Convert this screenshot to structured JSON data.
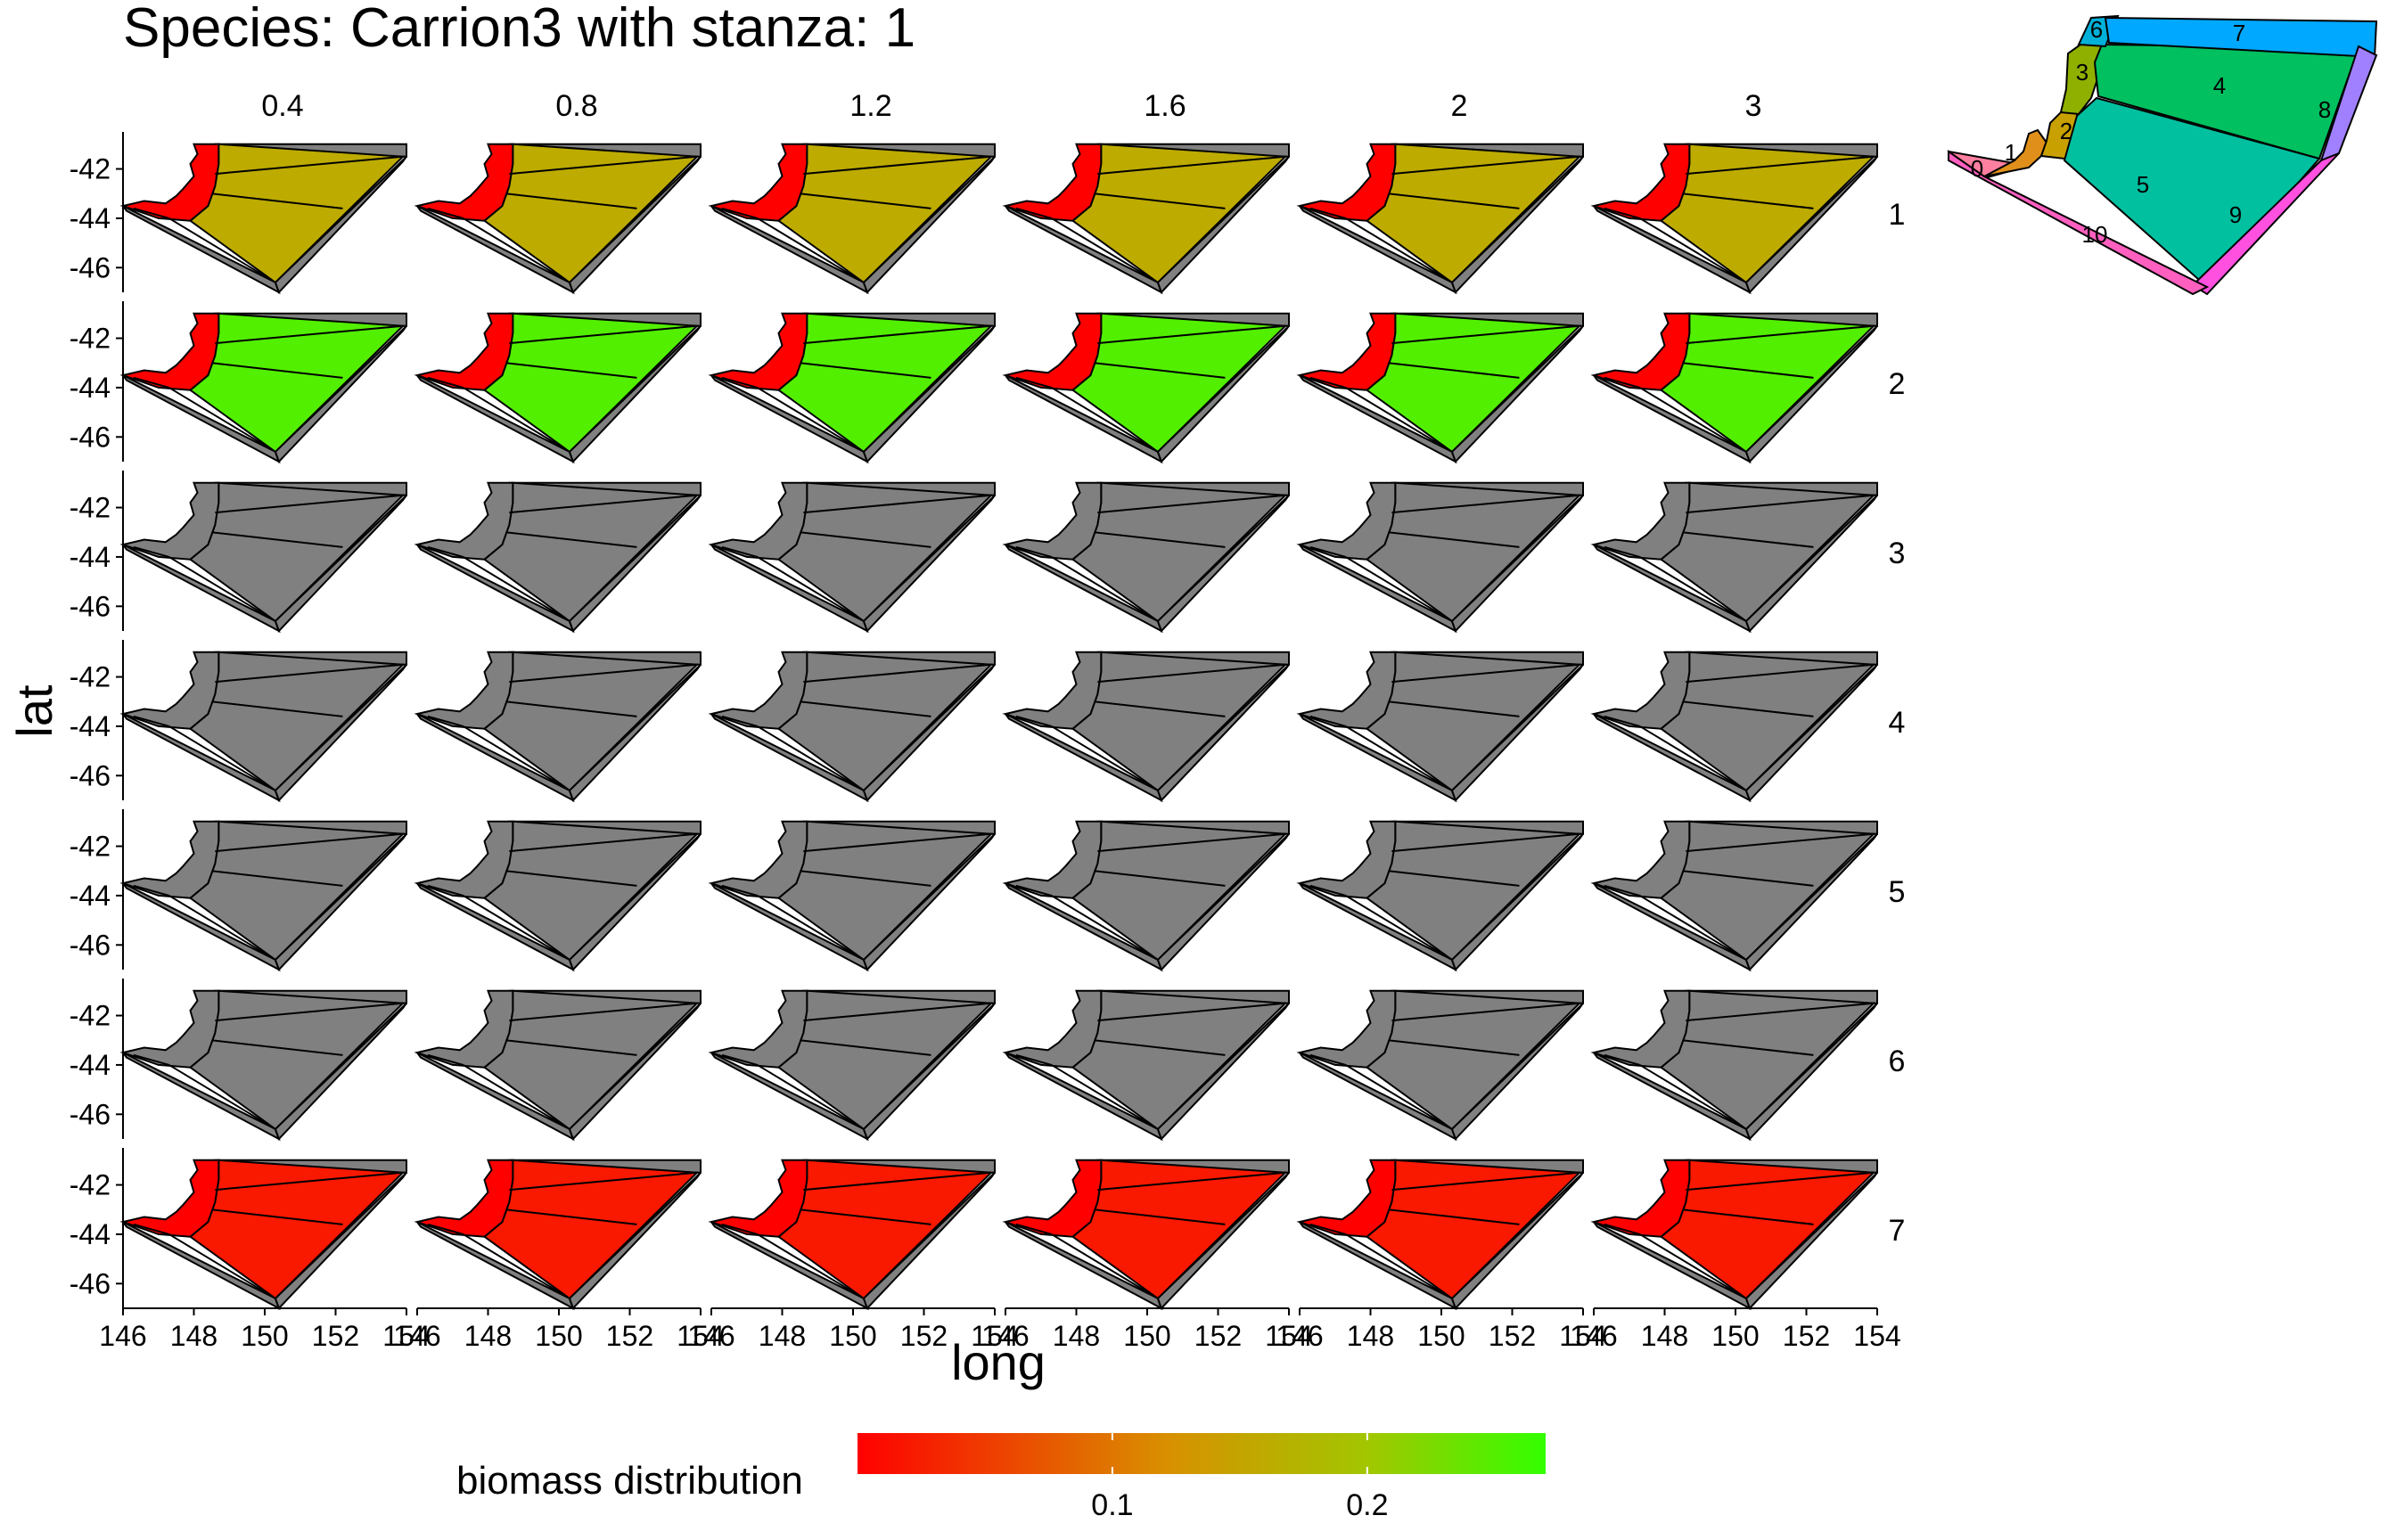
{
  "title": "Species: Carrion3 with stanza: 1",
  "chart_data": {
    "type": "heatmap",
    "title": "Species: Carrion3 with stanza: 1",
    "xlabel": "long",
    "ylabel": "lat",
    "x_ticks": [
      "146",
      "148",
      "150",
      "152",
      "154"
    ],
    "y_ticks": [
      "-42",
      "-44",
      "-46"
    ],
    "xlim": [
      146,
      154
    ],
    "ylim": [
      -47,
      -40.5
    ],
    "columns": [
      "0.4",
      "0.8",
      "1.2",
      "1.6",
      "2",
      "3"
    ],
    "rows": [
      "1",
      "2",
      "3",
      "4",
      "5",
      "6",
      "7"
    ],
    "legend": {
      "title": "biomass distribution",
      "ticks": [
        "0.1",
        "0.2"
      ],
      "tick_values": [
        0.1,
        0.2
      ],
      "range": [
        0.0,
        0.27
      ],
      "low_color": "#ff0000",
      "high_color": "#33ff00"
    },
    "no_data_color": "#808080",
    "panel_values": [
      {
        "row": "1",
        "coastal": 0.0,
        "offshore": 0.16
      },
      {
        "row": "2",
        "coastal": 0.0,
        "offshore": 0.25
      },
      {
        "row": "3",
        "coastal": null,
        "offshore": null
      },
      {
        "row": "4",
        "coastal": null,
        "offshore": null
      },
      {
        "row": "5",
        "coastal": null,
        "offshore": null
      },
      {
        "row": "6",
        "coastal": null,
        "offshore": null
      },
      {
        "row": "7",
        "coastal": 0.0,
        "offshore": 0.02
      }
    ],
    "inset_map": {
      "box_labels": [
        "0",
        "1",
        "2",
        "3",
        "4",
        "5",
        "6",
        "7",
        "8",
        "9",
        "10"
      ],
      "box_colors": [
        "#ff7fa0",
        "#e0901a",
        "#c8a000",
        "#90b000",
        "#00c060",
        "#00c0a0",
        "#00b0d8",
        "#00a8ff",
        "#a080ff",
        "#ff50e0",
        "#ff60c0"
      ]
    }
  }
}
